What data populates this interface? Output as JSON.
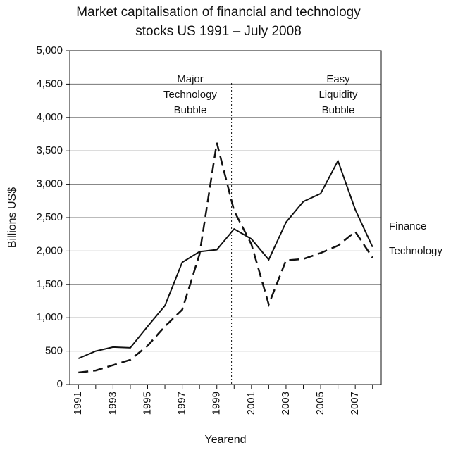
{
  "chart_data": {
    "type": "line",
    "title": [
      "Market capitalisation of financial and technology",
      "stocks US 1991 – July 2008"
    ],
    "y_label": "Billions US$",
    "x_label": "Yearend",
    "categories": [
      "1991",
      null,
      "1993",
      null,
      "1995",
      null,
      "1997",
      null,
      "1999",
      null,
      "2001",
      null,
      "2003",
      null,
      "2005",
      null,
      "2007",
      null
    ],
    "series": [
      {
        "name": "Finance",
        "color": "#111111",
        "dash": "solid",
        "values": [
          390,
          500,
          560,
          550,
          870,
          1180,
          1830,
          1990,
          2020,
          2330,
          2180,
          1870,
          2430,
          2740,
          2860,
          3350,
          2620,
          2060
        ]
      },
      {
        "name": "Technology",
        "color": "#111111",
        "dash": "dashed",
        "values": [
          180,
          210,
          290,
          370,
          580,
          870,
          1120,
          1950,
          3620,
          2600,
          2100,
          1200,
          1860,
          1880,
          1970,
          2080,
          2290,
          1900
        ]
      }
    ],
    "ylim": [
      0,
      5000
    ],
    "yticks": [
      0,
      500,
      {
        "value": 1000,
        "label": "1,000"
      },
      {
        "value": 1500,
        "label": "1,500"
      },
      {
        "value": 2000,
        "label": "2,000"
      },
      {
        "value": 2500,
        "label": "2,500"
      },
      {
        "value": 3000,
        "label": "3,000"
      },
      {
        "value": 3500,
        "label": "3,500"
      },
      {
        "value": 4000,
        "label": "4,000"
      },
      {
        "value": 4500,
        "label": "4,500"
      },
      {
        "value": 5000,
        "label": "5,000"
      }
    ],
    "grid": true,
    "annotations": [
      [
        "Major",
        "Technology",
        "Bubble"
      ],
      [
        "Easy",
        "Liquidity",
        "Bubble"
      ]
    ]
  }
}
